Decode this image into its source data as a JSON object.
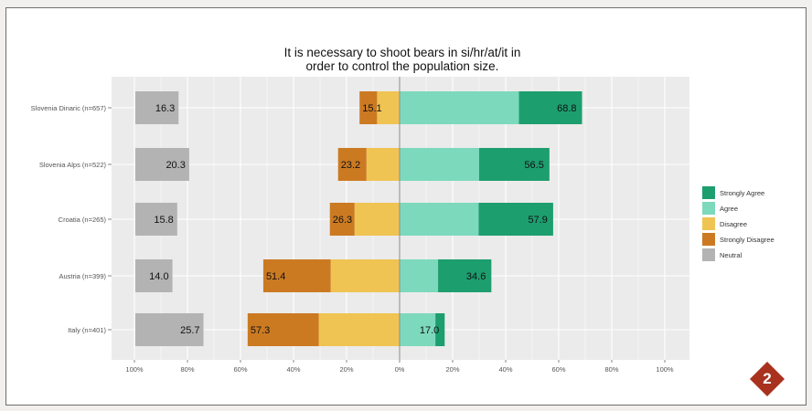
{
  "chart_data": {
    "type": "bar",
    "orientation": "horizontal",
    "stacked": "diverging",
    "title_lines": [
      "It is necessary to shoot bears in si/hr/at/it in",
      "order to control the population size."
    ],
    "categories": [
      "Slovenia Dinaric (n=657)",
      "Slovenia Alps (n=522)",
      "Croatia (n=265)",
      "Austria (n=399)",
      "Italy (n=401)"
    ],
    "series": [
      {
        "name": "Strongly Agree",
        "color": "#1d9e6e",
        "values": [
          23.8,
          26.5,
          28.1,
          20.1,
          3.5
        ]
      },
      {
        "name": "Agree",
        "color": "#7dd9bc",
        "values": [
          45.0,
          30.0,
          29.8,
          14.5,
          13.5
        ]
      },
      {
        "name": "Disagree",
        "color": "#f0c453",
        "values": [
          8.5,
          12.5,
          17.0,
          26.0,
          30.5
        ]
      },
      {
        "name": "Strongly Disagree",
        "color": "#cc7a22",
        "values": [
          6.6,
          10.7,
          9.3,
          25.4,
          26.8
        ]
      },
      {
        "name": "Neutral",
        "color": "#b3b3b3",
        "values": [
          16.3,
          20.3,
          15.8,
          14.0,
          25.7
        ]
      }
    ],
    "agree_labels": [
      "68.8",
      "56.5",
      "57.9",
      "34.6",
      "17.0"
    ],
    "disagree_labels": [
      "15.1",
      "23.2",
      "26.3",
      "51.4",
      "57.3"
    ],
    "neutral_labels": [
      "16.3",
      "20.3",
      "15.8",
      "14.0",
      "25.7"
    ],
    "x_ticks": [
      "100%",
      "80%",
      "60%",
      "40%",
      "20%",
      "0%",
      "20%",
      "40%",
      "60%",
      "80%",
      "100%"
    ],
    "xlim": [
      -100,
      100
    ],
    "grid": true,
    "legend_position": "right"
  },
  "badge": {
    "label": "2",
    "color": "#a8321e"
  }
}
